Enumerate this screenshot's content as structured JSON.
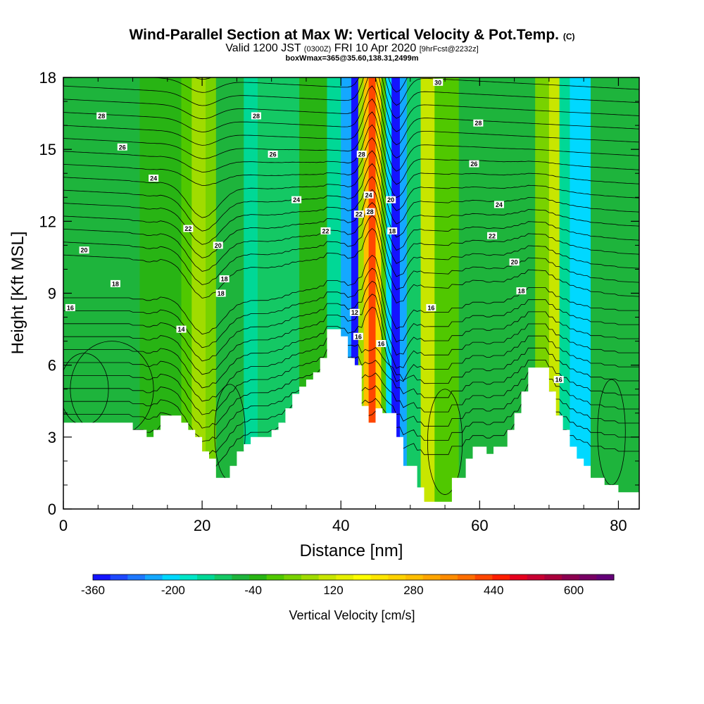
{
  "title": {
    "line1": "Wind-Parallel Section at Max W: Vertical Velocity & Pot.Temp.",
    "line1_suffix": "(C)",
    "line2_main": "Valid 1200 JST",
    "line2_utc": "(0300Z)",
    "line2_date": "FRI 10 Apr 2020",
    "line2_fcst": "[9hrFcst@2232z]",
    "line3": "boxWmax=365@35.60,138.31,2499m"
  },
  "chart_data": {
    "type": "heatmap",
    "xlabel": "Distance [nm]",
    "ylabel": "Height [Kft MSL]",
    "xlim": [
      0,
      83
    ],
    "ylim": [
      0,
      18
    ],
    "x_ticks": [
      0,
      20,
      40,
      60,
      80
    ],
    "y_ticks": [
      0,
      3,
      6,
      9,
      12,
      15,
      18
    ],
    "terrain_profile": [
      [
        0,
        3.6
      ],
      [
        10,
        3.6
      ],
      [
        10,
        3.3
      ],
      [
        12,
        3.3
      ],
      [
        12,
        3.0
      ],
      [
        13,
        3.0
      ],
      [
        13,
        3.3
      ],
      [
        14,
        3.3
      ],
      [
        14,
        3.9
      ],
      [
        17,
        3.9
      ],
      [
        17,
        3.6
      ],
      [
        18,
        3.6
      ],
      [
        18,
        3.3
      ],
      [
        19,
        3.3
      ],
      [
        19,
        3.0
      ],
      [
        20,
        3.0
      ],
      [
        20,
        2.4
      ],
      [
        21,
        2.4
      ],
      [
        21,
        2.1
      ],
      [
        22,
        2.1
      ],
      [
        22,
        1.3
      ],
      [
        24,
        1.3
      ],
      [
        24,
        1.8
      ],
      [
        25,
        1.8
      ],
      [
        25,
        2.4
      ],
      [
        26,
        2.4
      ],
      [
        26,
        2.7
      ],
      [
        27,
        2.7
      ],
      [
        27,
        3.0
      ],
      [
        30,
        3.0
      ],
      [
        30,
        3.3
      ],
      [
        31,
        3.3
      ],
      [
        31,
        3.6
      ],
      [
        32,
        3.6
      ],
      [
        32,
        4.2
      ],
      [
        33,
        4.2
      ],
      [
        33,
        4.8
      ],
      [
        34,
        4.8
      ],
      [
        34,
        5.1
      ],
      [
        35,
        5.1
      ],
      [
        35,
        5.4
      ],
      [
        36,
        5.4
      ],
      [
        36,
        5.7
      ],
      [
        37,
        5.7
      ],
      [
        37,
        6.3
      ],
      [
        38,
        6.3
      ],
      [
        38,
        7.5
      ],
      [
        40,
        7.5
      ],
      [
        40,
        7.2
      ],
      [
        41,
        7.2
      ],
      [
        41,
        6.3
      ],
      [
        42,
        6.3
      ],
      [
        42,
        6.0
      ],
      [
        43,
        6.0
      ],
      [
        43,
        4.3
      ],
      [
        44,
        4.3
      ],
      [
        44,
        3.6
      ],
      [
        45,
        3.6
      ],
      [
        45,
        4.2
      ],
      [
        46,
        4.2
      ],
      [
        46,
        4.0
      ],
      [
        48,
        4.0
      ],
      [
        48,
        3.0
      ],
      [
        49,
        3.0
      ],
      [
        49,
        1.8
      ],
      [
        51,
        1.8
      ],
      [
        51,
        0.9
      ],
      [
        52,
        0.9
      ],
      [
        52,
        0.3
      ],
      [
        56,
        0.3
      ],
      [
        56,
        1.3
      ],
      [
        58,
        1.3
      ],
      [
        58,
        2.1
      ],
      [
        59,
        2.1
      ],
      [
        59,
        2.6
      ],
      [
        61,
        2.6
      ],
      [
        61,
        2.3
      ],
      [
        62,
        2.3
      ],
      [
        62,
        2.6
      ],
      [
        64,
        2.6
      ],
      [
        64,
        3.3
      ],
      [
        65,
        3.3
      ],
      [
        65,
        4.0
      ],
      [
        66,
        4.0
      ],
      [
        66,
        4.9
      ],
      [
        67,
        4.9
      ],
      [
        67,
        5.9
      ],
      [
        70,
        5.9
      ],
      [
        70,
        4.9
      ],
      [
        71,
        4.9
      ],
      [
        71,
        3.9
      ],
      [
        72,
        3.9
      ],
      [
        72,
        3.3
      ],
      [
        73,
        3.3
      ],
      [
        73,
        2.6
      ],
      [
        74,
        2.6
      ],
      [
        74,
        2.1
      ],
      [
        75,
        2.1
      ],
      [
        75,
        1.8
      ],
      [
        76,
        1.8
      ],
      [
        76,
        1.3
      ],
      [
        78,
        1.3
      ],
      [
        78,
        1.0
      ],
      [
        80,
        1.0
      ],
      [
        80,
        0.7
      ],
      [
        81,
        0.7
      ],
      [
        81,
        0.7
      ],
      [
        83,
        0.7
      ]
    ],
    "vertical_velocity_bands": [
      {
        "x0": 0,
        "x1": 11,
        "value": -20
      },
      {
        "x0": 11,
        "x1": 17,
        "value": 0
      },
      {
        "x0": 17,
        "x1": 18.5,
        "value": 60
      },
      {
        "x0": 18.5,
        "x1": 20.5,
        "value": 120
      },
      {
        "x0": 20.5,
        "x1": 22,
        "value": 80
      },
      {
        "x0": 22,
        "x1": 26,
        "value": -40
      },
      {
        "x0": 26,
        "x1": 28,
        "value": -120
      },
      {
        "x0": 28,
        "x1": 34,
        "value": -60
      },
      {
        "x0": 34,
        "x1": 38,
        "value": 20
      },
      {
        "x0": 38,
        "x1": 40,
        "value": -120
      },
      {
        "x0": 40,
        "x1": 41.5,
        "value": -240
      },
      {
        "x0": 41.5,
        "x1": 42.5,
        "value": -360
      },
      {
        "x0": 42.5,
        "x1": 43.3,
        "value": 120
      },
      {
        "x0": 43.3,
        "x1": 44,
        "value": 360
      },
      {
        "x0": 44,
        "x1": 45,
        "value": 520
      },
      {
        "x0": 45,
        "x1": 45.8,
        "value": 320
      },
      {
        "x0": 45.8,
        "x1": 46.5,
        "value": 40
      },
      {
        "x0": 46.5,
        "x1": 47.3,
        "value": -200
      },
      {
        "x0": 47.3,
        "x1": 48.5,
        "value": -360
      },
      {
        "x0": 48.5,
        "x1": 49.5,
        "value": -240
      },
      {
        "x0": 49.5,
        "x1": 51.5,
        "value": -80
      },
      {
        "x0": 51.5,
        "x1": 53.5,
        "value": 160
      },
      {
        "x0": 53.5,
        "x1": 57,
        "value": 40
      },
      {
        "x0": 57,
        "x1": 63,
        "value": -20
      },
      {
        "x0": 63,
        "x1": 68,
        "value": -40
      },
      {
        "x0": 68,
        "x1": 70,
        "value": 80
      },
      {
        "x0": 70,
        "x1": 71.5,
        "value": 160
      },
      {
        "x0": 71.5,
        "x1": 73,
        "value": -120
      },
      {
        "x0": 73,
        "x1": 76,
        "value": -180
      },
      {
        "x0": 76,
        "x1": 83,
        "value": -40
      }
    ],
    "colorbar": {
      "label": "Vertical Velocity [cm/s]",
      "min": -360,
      "max": 680,
      "step": 40,
      "tick_values": [
        -360,
        -200,
        -40,
        120,
        280,
        440,
        600
      ],
      "tick_labels": [
        "-360",
        "-200",
        "-40",
        "120",
        "280",
        "440",
        "600"
      ],
      "colors": [
        "#1414ff",
        "#1e48ff",
        "#1e78ff",
        "#14a8ff",
        "#00d8ff",
        "#00e6c8",
        "#00d896",
        "#14c864",
        "#1eb43c",
        "#28b414",
        "#50c800",
        "#78d200",
        "#a0dc00",
        "#c8e600",
        "#e6f000",
        "#ffff00",
        "#ffe600",
        "#ffd200",
        "#ffbe00",
        "#ffa500",
        "#ff8c00",
        "#ff6e00",
        "#ff4600",
        "#ff1e00",
        "#e6001e",
        "#c80032",
        "#aa003c",
        "#8c0050",
        "#780064",
        "#640078"
      ]
    },
    "pot_temp_contours": [
      {
        "y_left": 4.0,
        "label": "14",
        "label_x": 17,
        "label_y": 7.5
      },
      {
        "y_left": 5.0,
        "label": "16",
        "label_x": 1,
        "label_y": 8.4
      },
      {
        "y_left": 7.3,
        "label": "18",
        "label_x": 7.5,
        "label_y": 9.4
      },
      {
        "y_left": 8.5,
        "label": "20",
        "label_x": 3,
        "label_y": 10.8
      },
      {
        "y_left": 10.2,
        "label": "22",
        "label_x": 18,
        "label_y": 11.7
      },
      {
        "y_left": 12.2,
        "label": "24",
        "label_x": 13,
        "label_y": 13.8
      },
      {
        "y_left": 14.1,
        "label": "26",
        "label_x": 8.5,
        "label_y": 15.1
      },
      {
        "y_left": 15.4,
        "label": "28",
        "label_x": 5.5,
        "label_y": 16.4
      }
    ],
    "contour_labels": [
      {
        "x": 22.3,
        "y": 11.0,
        "text": "20"
      },
      {
        "x": 23.2,
        "y": 9.6,
        "text": "18"
      },
      {
        "x": 22.7,
        "y": 9.0,
        "text": "18"
      },
      {
        "x": 27.8,
        "y": 16.4,
        "text": "28"
      },
      {
        "x": 30.2,
        "y": 14.8,
        "text": "26"
      },
      {
        "x": 33.6,
        "y": 12.9,
        "text": "24"
      },
      {
        "x": 37.8,
        "y": 11.6,
        "text": "22"
      },
      {
        "x": 42.6,
        "y": 12.3,
        "text": "22"
      },
      {
        "x": 43.0,
        "y": 14.8,
        "text": "28"
      },
      {
        "x": 44.0,
        "y": 13.1,
        "text": "24"
      },
      {
        "x": 44.2,
        "y": 12.4,
        "text": "28"
      },
      {
        "x": 47.2,
        "y": 12.9,
        "text": "20"
      },
      {
        "x": 47.4,
        "y": 11.6,
        "text": "18"
      },
      {
        "x": 42.0,
        "y": 8.2,
        "text": "12"
      },
      {
        "x": 42.5,
        "y": 7.2,
        "text": "16"
      },
      {
        "x": 45.8,
        "y": 6.9,
        "text": "16"
      },
      {
        "x": 53.0,
        "y": 8.4,
        "text": "16"
      },
      {
        "x": 54.0,
        "y": 17.8,
        "text": "30"
      },
      {
        "x": 59.8,
        "y": 16.1,
        "text": "28"
      },
      {
        "x": 59.2,
        "y": 14.4,
        "text": "26"
      },
      {
        "x": 62.8,
        "y": 12.7,
        "text": "24"
      },
      {
        "x": 61.8,
        "y": 11.4,
        "text": "22"
      },
      {
        "x": 65.0,
        "y": 10.3,
        "text": "20"
      },
      {
        "x": 66.0,
        "y": 9.1,
        "text": "18"
      },
      {
        "x": 71.4,
        "y": 5.4,
        "text": "16"
      }
    ]
  }
}
